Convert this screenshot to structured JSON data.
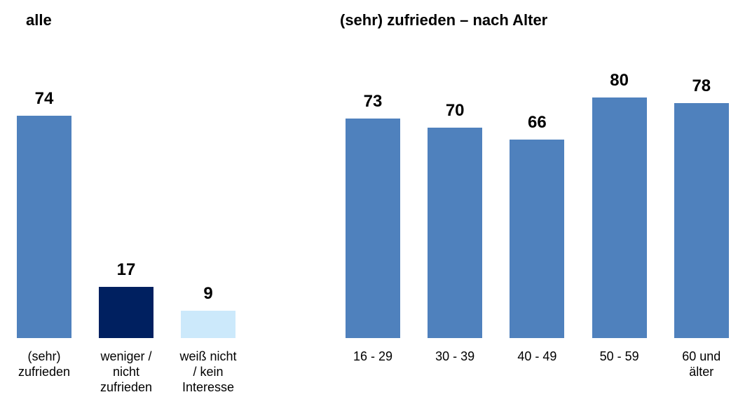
{
  "chart_data": [
    {
      "type": "bar",
      "title": "alle",
      "categories": [
        "(sehr)\nzufrieden",
        "weniger /\nnicht\nzufrieden",
        "weiß nicht\n/ kein\nInteresse"
      ],
      "values": [
        74,
        17,
        9
      ],
      "colors": [
        "#4f81bd",
        "#002060",
        "#cce9fb"
      ],
      "ylim": [
        0,
        100
      ]
    },
    {
      "type": "bar",
      "title": "(sehr) zufrieden – nach Alter",
      "categories": [
        "16 - 29",
        "30 - 39",
        "40 - 49",
        "50 - 59",
        "60 und\nälter"
      ],
      "values": [
        73,
        70,
        66,
        80,
        78
      ],
      "color": "#4f81bd",
      "ylim": [
        0,
        100
      ]
    }
  ]
}
